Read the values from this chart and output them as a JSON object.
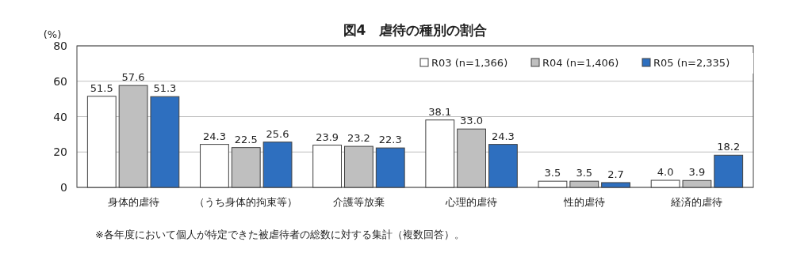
{
  "chart_data": {
    "type": "bar",
    "title": "図4　虐待の種別の割合",
    "ylabel": "(%)",
    "categories": [
      "身体的虐待",
      "（うち身体的拘束等）",
      "介護等放棄",
      "心理的虐待",
      "性的虐待",
      "経済的虐待"
    ],
    "series": [
      {
        "name": "R03 (n=1,366)",
        "color": "#ffffff",
        "values": [
          51.5,
          24.3,
          23.9,
          38.1,
          3.5,
          4.0
        ],
        "value_labels": [
          "51.5",
          "24.3",
          "23.9",
          "38.1",
          "3.5",
          "4.0"
        ]
      },
      {
        "name": "R04 (n=1,406)",
        "color": "#bfbfbf",
        "values": [
          57.6,
          22.5,
          23.2,
          33.0,
          3.5,
          3.9
        ],
        "value_labels": [
          "57.6",
          "22.5",
          "23.2",
          "33.0",
          "3.5",
          "3.9"
        ]
      },
      {
        "name": "R05 (n=2,335)",
        "color": "#2e6fbf",
        "values": [
          51.3,
          25.6,
          22.3,
          24.3,
          2.7,
          18.2
        ],
        "value_labels": [
          "51.3",
          "25.6",
          "22.3",
          "24.3",
          "2.7",
          "18.2"
        ]
      }
    ],
    "ylim": [
      0,
      80
    ],
    "yticks": [
      0,
      20,
      40,
      60,
      80
    ],
    "grid": "y",
    "legend": "top right",
    "annotations": [
      "※各年度において個人が特定できた被虐待者の総数に対する集計（複数回答）。"
    ]
  }
}
